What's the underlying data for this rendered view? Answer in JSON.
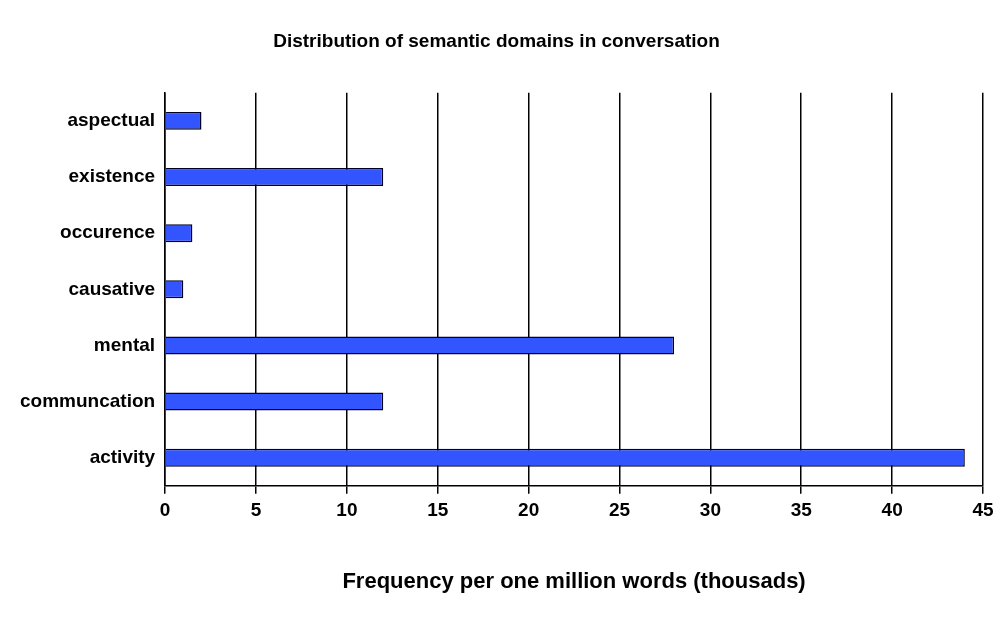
{
  "chart_data": {
    "type": "bar",
    "orientation": "horizontal",
    "title": "Distribution of semantic domains in conversation",
    "xlabel": "Frequency per one million words (thousads)",
    "categories": [
      "aspectual",
      "existence",
      "occurence",
      "causative",
      "mental",
      "communcation",
      "activity"
    ],
    "values": [
      2,
      12,
      1.5,
      1,
      28,
      12,
      44
    ],
    "color": "#3355ff",
    "xlim": [
      0,
      45
    ],
    "xticks": [
      0,
      5,
      10,
      15,
      20,
      25,
      30,
      35,
      40,
      45
    ],
    "grid": "x"
  }
}
